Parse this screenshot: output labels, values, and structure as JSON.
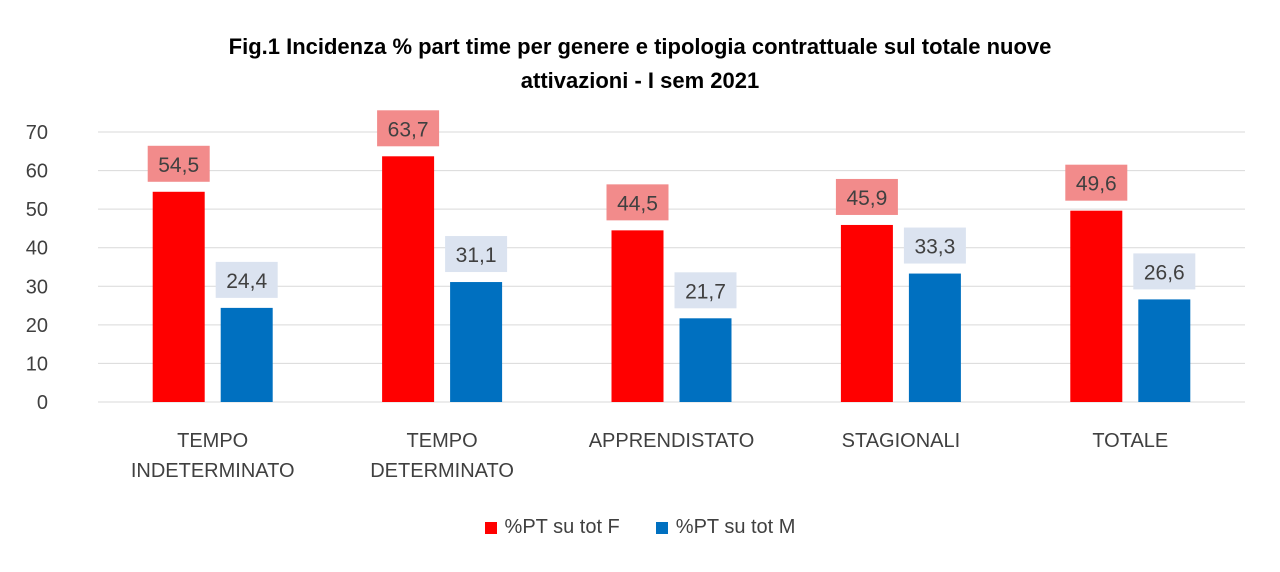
{
  "chart_data": {
    "type": "bar",
    "title_lines": [
      "Fig.1 Incidenza % part time per genere e tipologia contrattuale sul totale nuove",
      "attivazioni - I sem 2021"
    ],
    "categories": [
      [
        "TEMPO",
        "INDETERMINATO"
      ],
      [
        "TEMPO",
        "DETERMINATO"
      ],
      [
        "APPRENDISTATO"
      ],
      [
        "STAGIONALI"
      ],
      [
        "TOTALE"
      ]
    ],
    "series": [
      {
        "name": "%PT su tot F",
        "color": "#ff0000",
        "label_bg": "#f28b8b",
        "values": [
          54.5,
          63.7,
          44.5,
          45.9,
          49.6
        ],
        "labels": [
          "54,5",
          "63,7",
          "44,5",
          "45,9",
          "49,6"
        ]
      },
      {
        "name": "%PT su tot M",
        "color": "#0070c0",
        "label_bg": "#dbe3f0",
        "values": [
          24.4,
          31.1,
          21.7,
          33.3,
          26.6
        ],
        "labels": [
          "24,4",
          "31,1",
          "21,7",
          "33,3",
          "26,6"
        ]
      }
    ],
    "yticks": [
      "0",
      "10",
      "20",
      "30",
      "40",
      "50",
      "60",
      "70"
    ],
    "ylim": [
      0,
      70
    ],
    "grid": true,
    "gridline_color": "#d9d9d9",
    "legend_position": "bottom"
  }
}
